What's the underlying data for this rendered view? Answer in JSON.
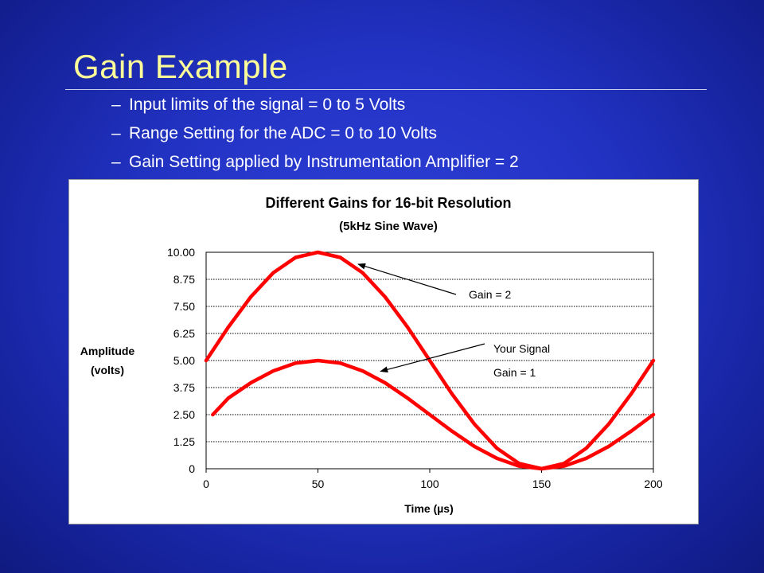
{
  "slide": {
    "title": "Gain Example",
    "bullet_marker": "–",
    "bullets": [
      "Input limits of the signal = 0 to 5 Volts",
      "Range Setting for the ADC = 0 to 10 Volts",
      "Gain Setting applied by Instrumentation Amplifier = 2"
    ]
  },
  "colors": {
    "background": "#1f2fc0",
    "title": "#ffff99",
    "text": "#ffffff",
    "series": "#ff0000"
  },
  "chart_data": {
    "type": "line",
    "title": "Different Gains for 16-bit Resolution",
    "subtitle": "(5kHz Sine Wave)",
    "xlabel": "Time (µs)",
    "ylabel_lines": [
      "Amplitude",
      "(volts)"
    ],
    "xlim": [
      0,
      200
    ],
    "ylim": [
      0,
      10
    ],
    "x_ticks": [
      "0",
      "50",
      "100",
      "150",
      "200"
    ],
    "y_ticks": [
      "10.00",
      "8.75",
      "7.50",
      "6.25",
      "5.00",
      "3.75",
      "2.50",
      "1.25",
      "0"
    ],
    "grid": "horizontal",
    "legend": "none",
    "series": [
      {
        "color": "#ff0000",
        "x": [
          0,
          10,
          20,
          30,
          40,
          50,
          60,
          70,
          80,
          90,
          100,
          110,
          120,
          130,
          140,
          150,
          160,
          170,
          180,
          190,
          200
        ],
        "y": [
          5.0,
          6.55,
          7.94,
          9.05,
          9.76,
          10.0,
          9.76,
          9.05,
          7.94,
          6.55,
          5.0,
          3.45,
          2.06,
          0.95,
          0.24,
          0.0,
          0.24,
          0.95,
          2.06,
          3.45,
          5.0
        ]
      },
      {
        "color": "#ff0000",
        "x": [
          3,
          10,
          20,
          30,
          40,
          50,
          60,
          70,
          80,
          90,
          100,
          110,
          120,
          130,
          140,
          150,
          160,
          170,
          180,
          190,
          200
        ],
        "y": [
          2.5,
          3.27,
          3.97,
          4.52,
          4.88,
          5.0,
          4.88,
          4.52,
          3.97,
          3.27,
          2.5,
          1.73,
          1.03,
          0.48,
          0.12,
          0.0,
          0.12,
          0.48,
          1.03,
          1.73,
          2.5
        ]
      }
    ],
    "annotations": [
      {
        "lines": [
          "Gain = 2"
        ],
        "target_x": 68,
        "target_y": 9.45
      },
      {
        "lines": [
          "Your Signal",
          "Gain = 1"
        ],
        "target_x": 78,
        "target_y": 4.5
      }
    ]
  }
}
